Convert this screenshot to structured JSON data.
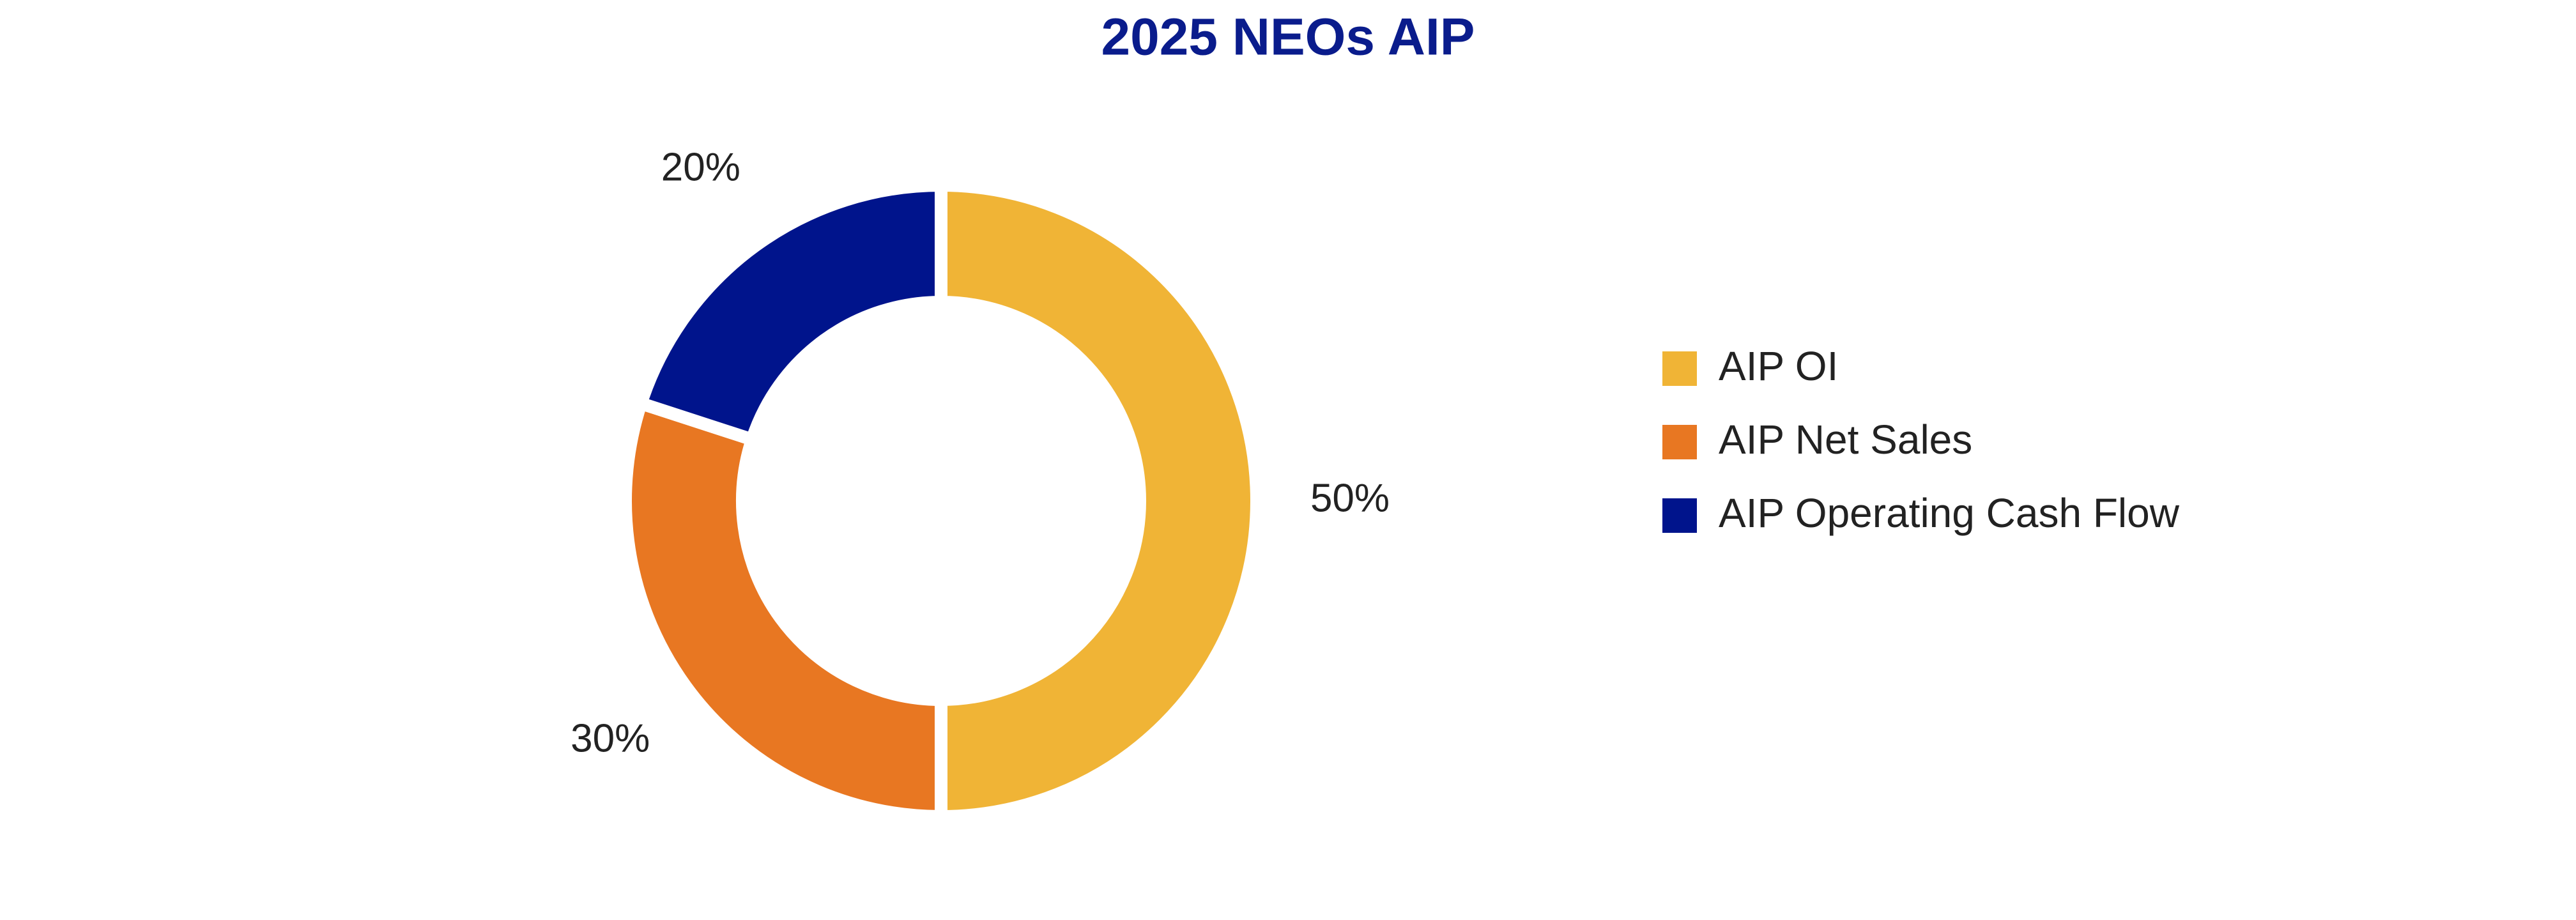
{
  "chart_data": {
    "type": "donut",
    "title": "2025 NEOs AIP",
    "categories": [
      "AIP OI",
      "AIP Net Sales",
      "AIP Operating Cash Flow"
    ],
    "values": [
      50,
      30,
      20
    ],
    "value_labels": [
      "50%",
      "30%",
      "20%"
    ],
    "colors": [
      "#f0b436",
      "#e87722",
      "#00148c"
    ],
    "legend": "right"
  }
}
